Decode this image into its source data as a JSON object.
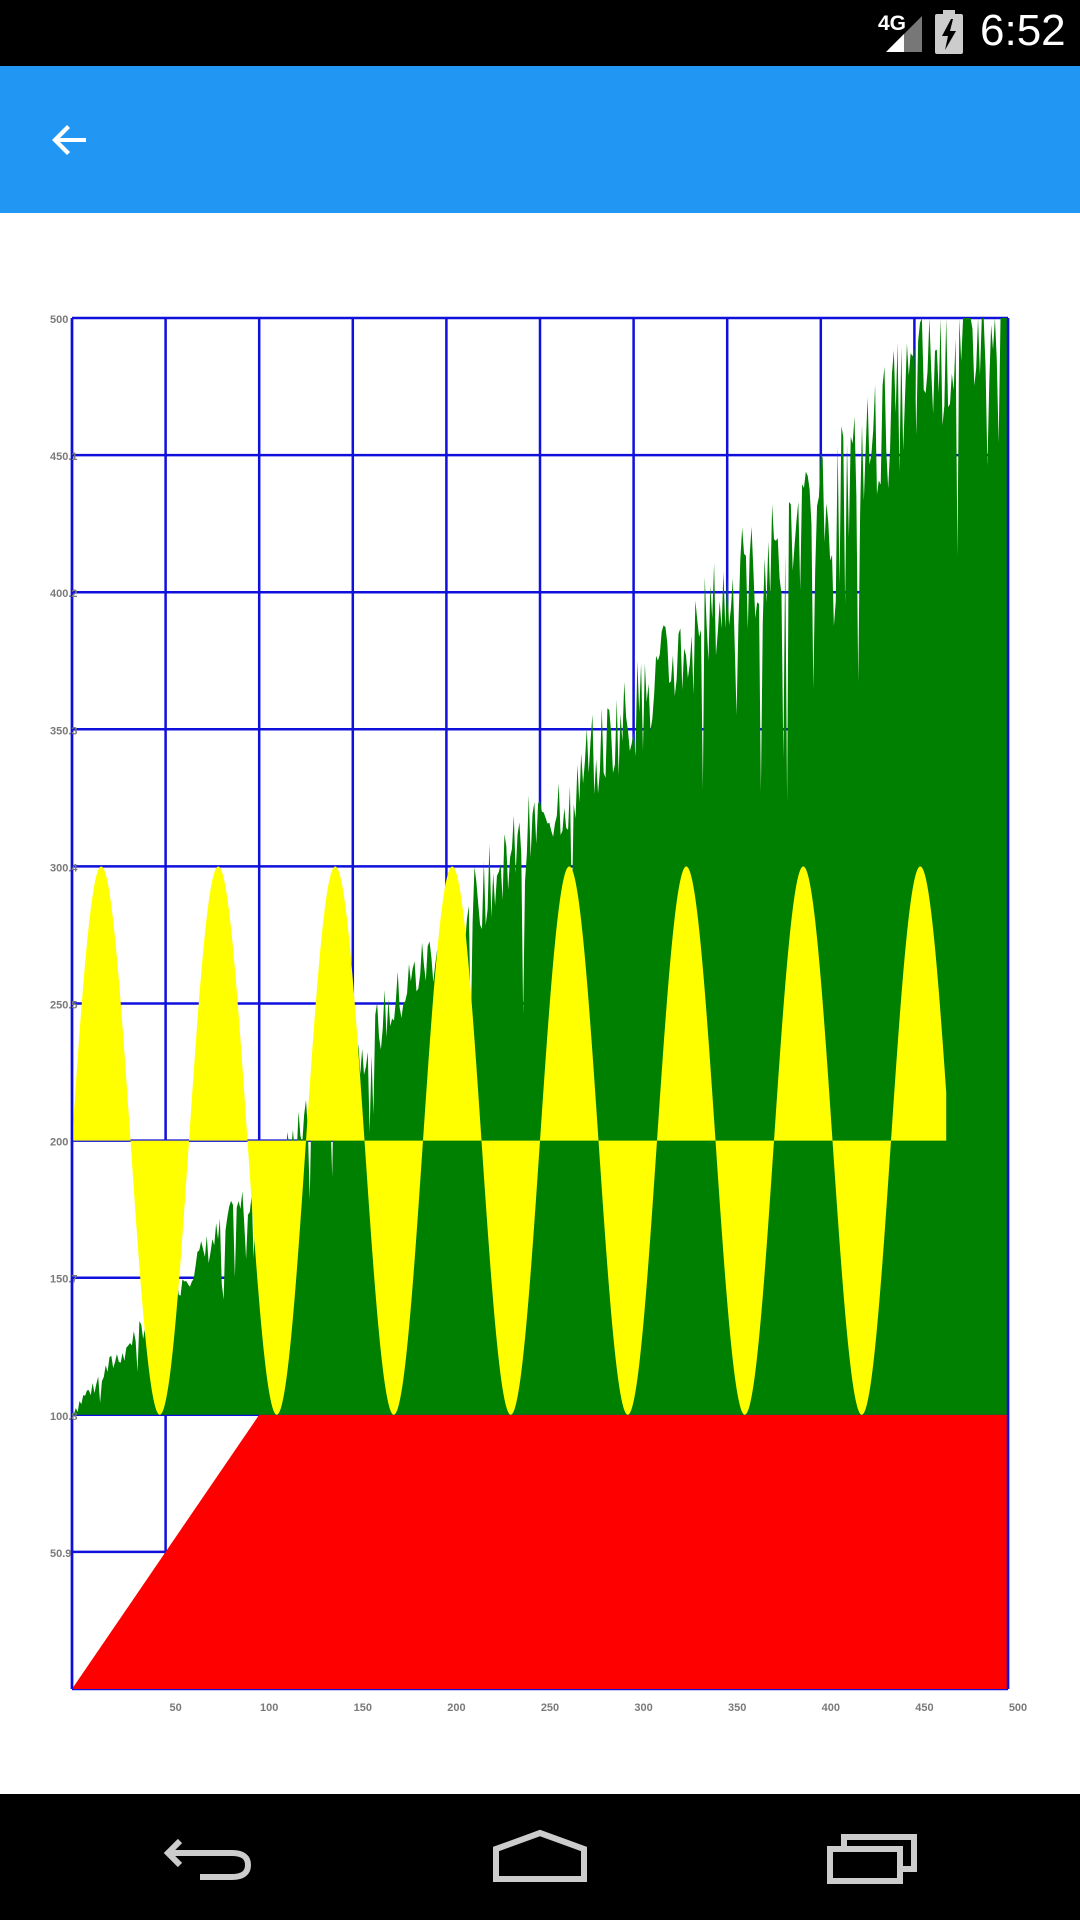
{
  "status_bar": {
    "network": "4G",
    "time": "6:52",
    "signal_icon": "cellular-signal-icon",
    "battery_icon": "battery-charging-icon"
  },
  "app_bar": {
    "background_color": "#2196F3",
    "back_icon": "arrow-back-icon"
  },
  "chart_data": [
    {
      "type": "area",
      "xlim": [
        0,
        500
      ],
      "ylim": [
        0,
        500
      ],
      "x_ticks": [
        "50",
        "100",
        "150",
        "200",
        "250",
        "300",
        "350",
        "400",
        "450",
        "500"
      ],
      "y_ticks": [
        "50.9",
        "100.8",
        "150.7",
        "200",
        "250.5",
        "300.4",
        "350.3",
        "400.2",
        "450.1",
        "500"
      ],
      "grid": true,
      "grid_color": "#1010DD",
      "series": [
        {
          "color": "#FF0000",
          "kind": "ramp-area",
          "x": [
            0,
            100,
            500
          ],
          "y": [
            0,
            100,
            100
          ]
        },
        {
          "color": "#008000",
          "kind": "noisy-area",
          "baseline": 100,
          "x": [
            0,
            50,
            100,
            150,
            200,
            250,
            300,
            350,
            400,
            450,
            500
          ],
          "y": [
            100,
            140,
            180,
            225,
            270,
            310,
            350,
            390,
            420,
            465,
            500
          ]
        },
        {
          "color": "#FFFF00",
          "kind": "sine-fill",
          "baseline": 200,
          "amplitude": 100,
          "period": 62.5,
          "x_range": [
            0,
            467
          ]
        }
      ]
    }
  ],
  "nav_bar": {
    "back_icon": "nav-back-icon",
    "home_icon": "nav-home-icon",
    "recents_icon": "nav-recents-icon"
  }
}
